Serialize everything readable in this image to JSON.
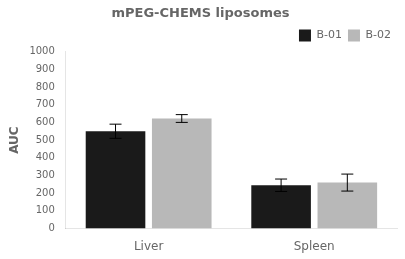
{
  "chart_data": {
    "type": "bar",
    "title": "mPEG-CHEMS liposomes",
    "ylabel": "AUC",
    "categories": [
      "Liver",
      "Spleen"
    ],
    "series": [
      {
        "name": "B-01",
        "color": "#1a1a1a",
        "values": [
          550,
          245
        ],
        "errors": [
          40,
          35
        ]
      },
      {
        "name": "B-02",
        "color": "#b8b8b8",
        "values": [
          622,
          260
        ],
        "errors": [
          22,
          48
        ]
      }
    ],
    "ylim": [
      0,
      1000
    ],
    "yticks": [
      0,
      100,
      200,
      300,
      400,
      500,
      600,
      700,
      800,
      900,
      1000
    ],
    "legend": "upper right",
    "grid": false
  }
}
